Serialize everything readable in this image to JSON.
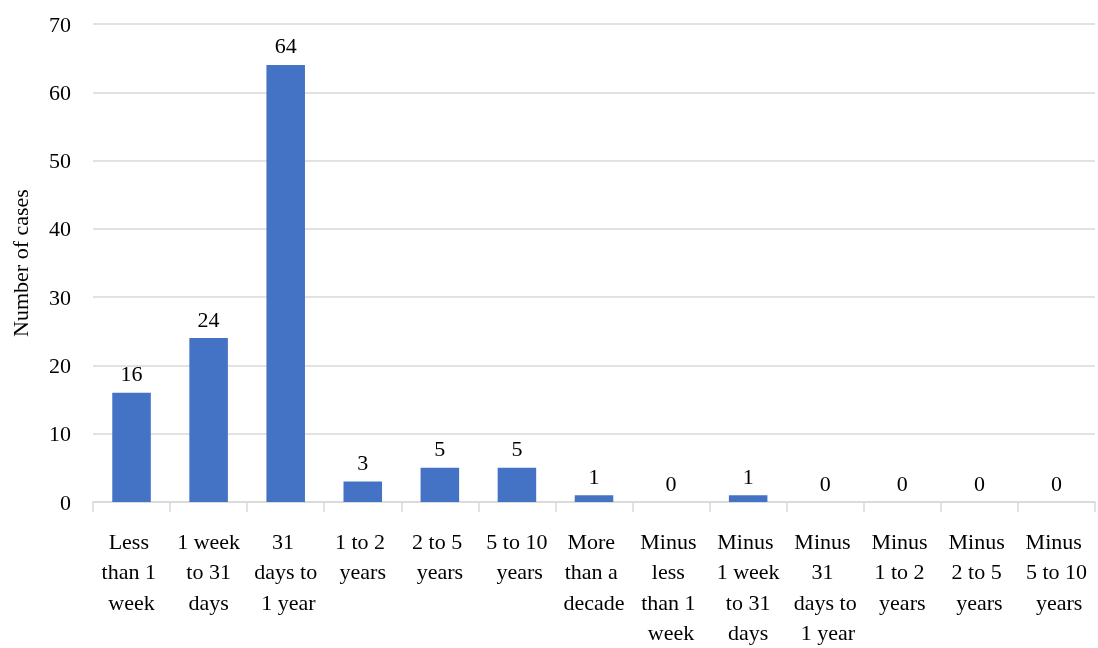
{
  "chart_data": {
    "type": "bar",
    "ylabel": "Number of cases",
    "categories": [
      "Less than 1 week",
      "1 week to 31 days",
      "31 days to 1 year",
      "1 to 2 years",
      "2 to 5 years",
      "5 to 10 years",
      "More than a decade",
      "Minus less than 1 week",
      "Minus 1 week to 31 days",
      "Minus 31 days to 1 year",
      "Minus 1 to 2 years",
      "Minus 2 to 5 years",
      "Minus 5 to 10 years"
    ],
    "values": [
      16,
      24,
      64,
      3,
      5,
      5,
      1,
      0,
      1,
      0,
      0,
      0,
      0
    ],
    "color": "#4472c4",
    "ylim": [
      0,
      70
    ],
    "yticks": [
      0,
      10,
      20,
      30,
      40,
      50,
      60,
      70
    ],
    "grid": "y",
    "data_labels": true
  }
}
